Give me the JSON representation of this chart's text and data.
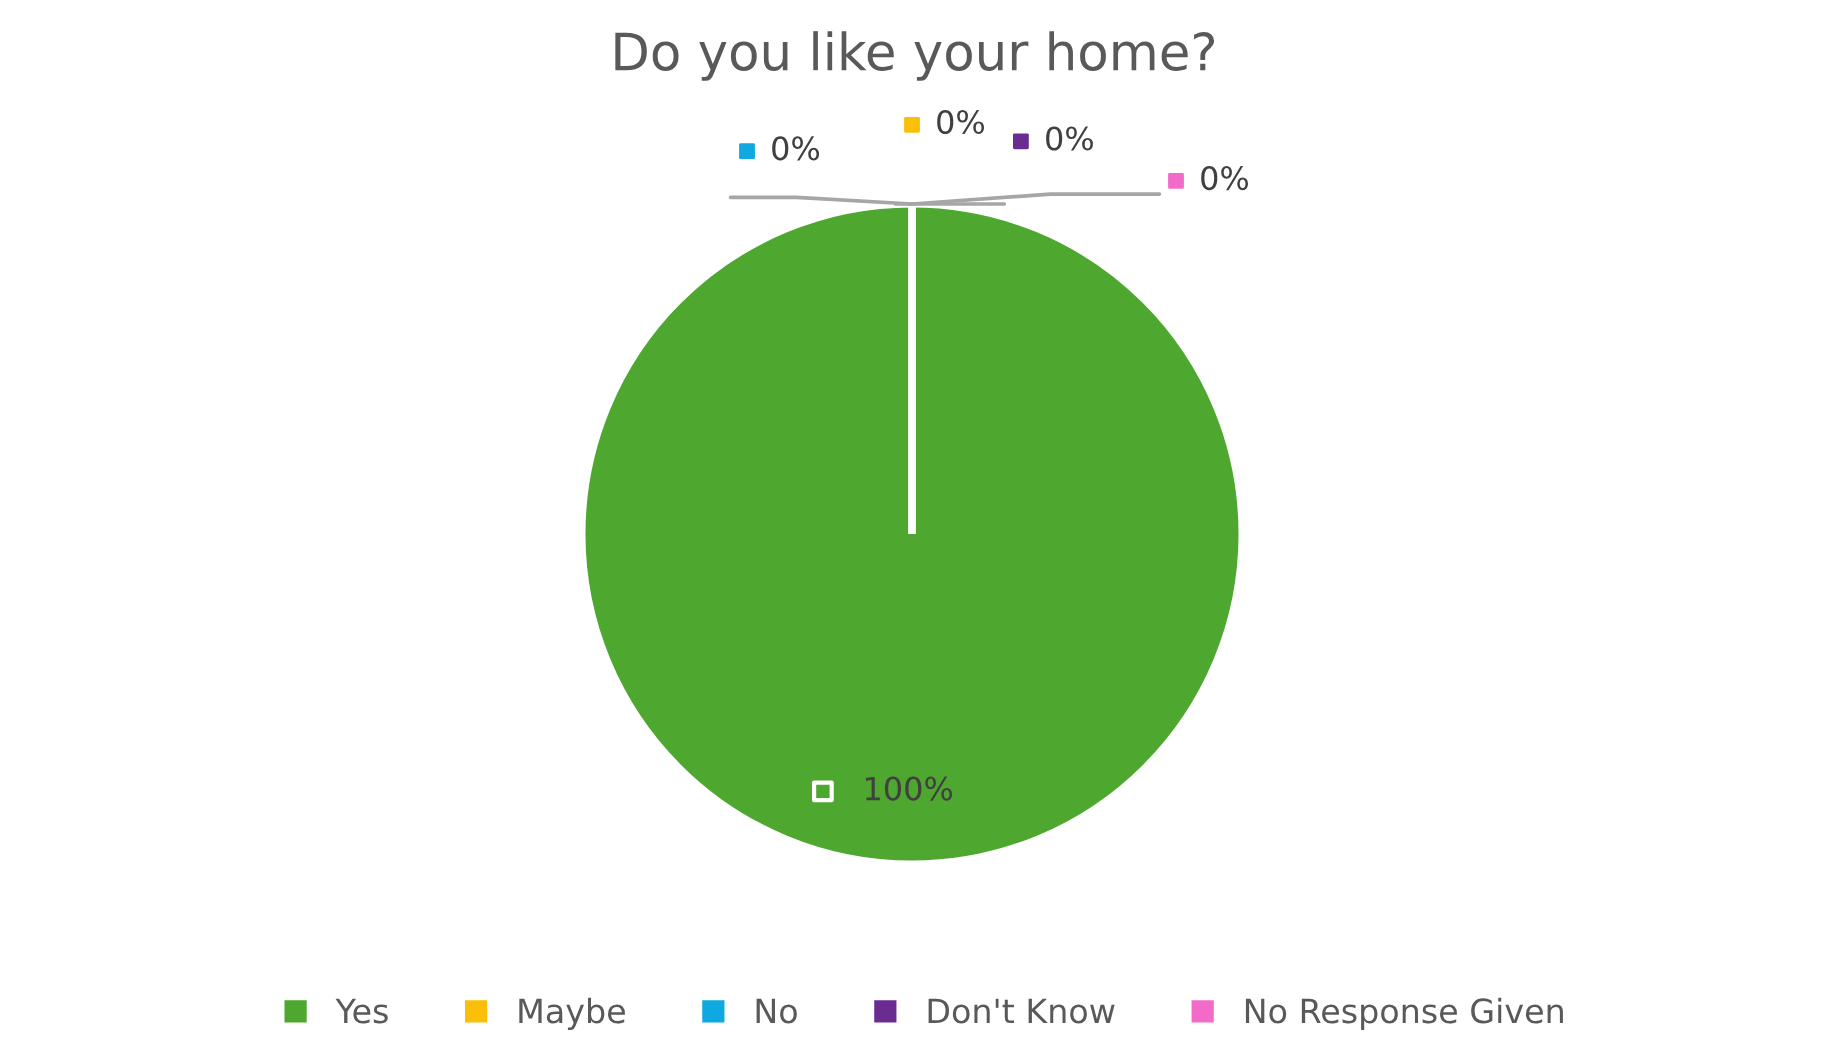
{
  "chart_data": {
    "type": "pie",
    "title": "Do you like your home?",
    "categories": [
      "Yes",
      "Maybe",
      "No",
      "Don't Know",
      "No Response Given"
    ],
    "values": [
      100,
      0,
      0,
      0,
      0
    ],
    "colors": [
      "#4ea72e",
      "#fbbf09",
      "#0fa8e0",
      "#6a2c91",
      "#f36bc8"
    ],
    "value_labels": [
      "100%",
      "0%",
      "0%",
      "0%",
      "0%"
    ],
    "legend": "bottom"
  }
}
